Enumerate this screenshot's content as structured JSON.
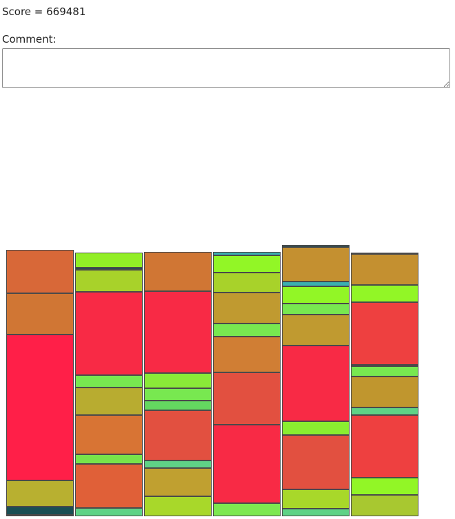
{
  "score": {
    "label": "Score",
    "value": "669481"
  },
  "comment": {
    "label": "Comment:",
    "value": ""
  },
  "board": {
    "columns": [
      {
        "blocks": [
          {
            "size": 0.04,
            "color": "#5fd286"
          },
          {
            "size": 0.66,
            "color": "#1a4f54"
          },
          {
            "size": 2.05,
            "color": "#b8b030"
          },
          {
            "size": 11.48,
            "color": "#ff1f48"
          },
          {
            "size": 3.24,
            "color": "#d07634"
          },
          {
            "size": 3.42,
            "color": "#d86838"
          }
        ]
      },
      {
        "blocks": [
          {
            "size": 0.66,
            "color": "#5fd286"
          },
          {
            "size": 3.44,
            "color": "#e06038"
          },
          {
            "size": 0.77,
            "color": "#78e44a"
          },
          {
            "size": 3.08,
            "color": "#d87434"
          },
          {
            "size": 2.16,
            "color": "#b8ac30"
          },
          {
            "size": 0.98,
            "color": "#78e850"
          },
          {
            "size": 6.52,
            "color": "#f82a45"
          },
          {
            "size": 1.72,
            "color": "#a8d22a"
          },
          {
            "size": 0.18,
            "color": "#1a4f54"
          },
          {
            "size": 1.17,
            "color": "#92ee26"
          }
        ]
      },
      {
        "blocks": [
          {
            "size": 1.56,
            "color": "#a8d82a"
          },
          {
            "size": 2.2,
            "color": "#c0a030"
          },
          {
            "size": 0.59,
            "color": "#5fd286"
          },
          {
            "size": 3.94,
            "color": "#e25040"
          },
          {
            "size": 0.74,
            "color": "#64d860"
          },
          {
            "size": 0.98,
            "color": "#78e850"
          },
          {
            "size": 1.17,
            "color": "#8aea38"
          },
          {
            "size": 6.44,
            "color": "#f82a45"
          },
          {
            "size": 3.08,
            "color": "#d07634"
          }
        ]
      },
      {
        "blocks": [
          {
            "size": 1.03,
            "color": "#7de850"
          },
          {
            "size": 6.16,
            "color": "#f82a45"
          },
          {
            "size": 4.1,
            "color": "#e25040"
          },
          {
            "size": 2.81,
            "color": "#d07e34"
          },
          {
            "size": 1.04,
            "color": "#78e850"
          },
          {
            "size": 2.45,
            "color": "#c09a30"
          },
          {
            "size": 1.56,
            "color": "#a8d22a"
          },
          {
            "size": 1.34,
            "color": "#92f626"
          },
          {
            "size": 0.25,
            "color": "#3ab0b0"
          }
        ]
      },
      {
        "blocks": [
          {
            "size": 0.59,
            "color": "#5fd286"
          },
          {
            "size": 1.53,
            "color": "#a8d82a"
          },
          {
            "size": 4.25,
            "color": "#e25040"
          },
          {
            "size": 1.1,
            "color": "#8aee30"
          },
          {
            "size": 5.94,
            "color": "#f82a45"
          },
          {
            "size": 2.45,
            "color": "#c09a30"
          },
          {
            "size": 0.88,
            "color": "#78e850"
          },
          {
            "size": 1.33,
            "color": "#92f626"
          },
          {
            "size": 0.39,
            "color": "#3ab0b0"
          },
          {
            "size": 2.68,
            "color": "#c49030"
          },
          {
            "size": 0.18,
            "color": "#1a4f54"
          }
        ]
      },
      {
        "blocks": [
          {
            "size": 1.7,
            "color": "#a8c830"
          },
          {
            "size": 1.34,
            "color": "#92f626"
          },
          {
            "size": 4.9,
            "color": "#ee4040"
          },
          {
            "size": 0.62,
            "color": "#5fd286"
          },
          {
            "size": 2.44,
            "color": "#c0962e"
          },
          {
            "size": 0.82,
            "color": "#78e850"
          },
          {
            "size": 0.1,
            "color": "#1a4f54"
          },
          {
            "size": 4.9,
            "color": "#ee4040"
          },
          {
            "size": 1.35,
            "color": "#92f626"
          },
          {
            "size": 2.43,
            "color": "#c49030"
          },
          {
            "size": 0.1,
            "color": "#f8a0b8"
          }
        ]
      }
    ]
  }
}
